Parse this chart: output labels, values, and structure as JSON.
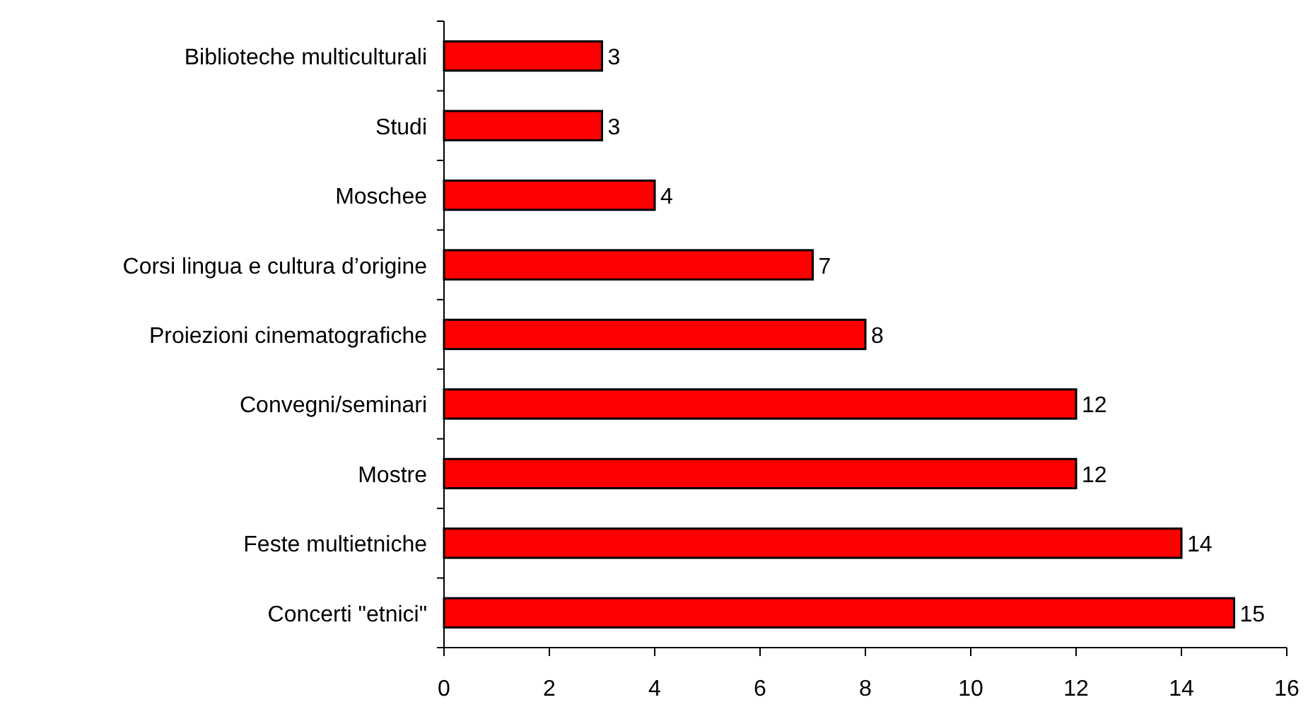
{
  "chart_data": {
    "type": "bar",
    "orientation": "horizontal",
    "categories": [
      "Biblioteche multiculturali",
      "Studi",
      "Moschee",
      "Corsi lingua e cultura d’origine",
      "Proiezioni cinematografiche",
      "Convegni/seminari",
      "Mostre",
      "Feste multietniche",
      "Concerti \"etnici\""
    ],
    "values": [
      3,
      3,
      4,
      7,
      8,
      12,
      12,
      14,
      15
    ],
    "color": "#ff0000",
    "data_labels": true,
    "xlim": [
      0,
      16
    ],
    "xticks": [
      0,
      2,
      4,
      6,
      8,
      10,
      12,
      14,
      16
    ],
    "grid": false
  }
}
